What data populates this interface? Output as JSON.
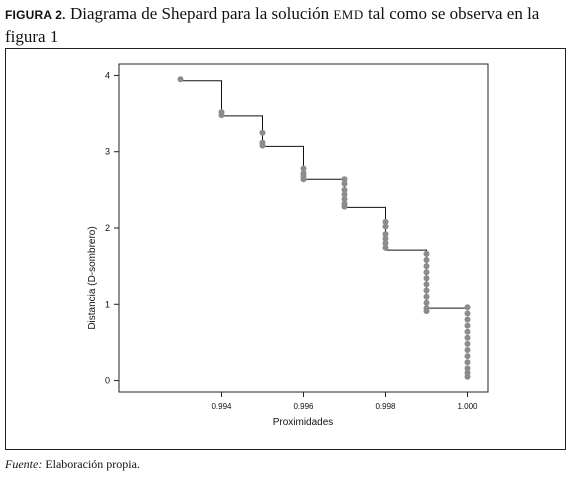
{
  "caption": {
    "figure_label": "FIGURA 2.",
    "text_before": "Diagrama de Shepard para la solución",
    "acronym": "EMD",
    "text_after": "tal como se observa en la figura 1"
  },
  "source": {
    "label": "Fuente:",
    "text": "Elaboración propia."
  },
  "chart_data": {
    "type": "scatter",
    "title": "",
    "xlabel": "Proximidades",
    "ylabel": "Distancia (D-sombrero)",
    "xlim": [
      0.9915,
      1.0005
    ],
    "ylim": [
      -0.15,
      4.15
    ],
    "xticks": [
      0.994,
      0.996,
      0.998,
      1.0
    ],
    "xtick_labels": [
      "0.994",
      "0.996",
      "0.998",
      "1.000"
    ],
    "yticks": [
      0,
      1,
      2,
      3,
      4
    ],
    "ytick_labels": [
      "0",
      "1",
      "2",
      "3",
      "4"
    ],
    "grid": false,
    "legend": "none",
    "point_color": "#8c8c8c",
    "line_color": "#111111",
    "points": [
      [
        0.993,
        3.95
      ],
      [
        0.994,
        3.52
      ],
      [
        0.994,
        3.48
      ],
      [
        0.995,
        3.25
      ],
      [
        0.995,
        3.12
      ],
      [
        0.995,
        3.08
      ],
      [
        0.996,
        2.78
      ],
      [
        0.996,
        2.72
      ],
      [
        0.996,
        2.68
      ],
      [
        0.996,
        2.64
      ],
      [
        0.997,
        2.64
      ],
      [
        0.997,
        2.58
      ],
      [
        0.997,
        2.5
      ],
      [
        0.997,
        2.44
      ],
      [
        0.997,
        2.38
      ],
      [
        0.997,
        2.32
      ],
      [
        0.997,
        2.28
      ],
      [
        0.998,
        2.08
      ],
      [
        0.998,
        2.02
      ],
      [
        0.998,
        1.92
      ],
      [
        0.998,
        1.86
      ],
      [
        0.998,
        1.8
      ],
      [
        0.998,
        1.74
      ],
      [
        0.999,
        1.66
      ],
      [
        0.999,
        1.58
      ],
      [
        0.999,
        1.5
      ],
      [
        0.999,
        1.42
      ],
      [
        0.999,
        1.34
      ],
      [
        0.999,
        1.26
      ],
      [
        0.999,
        1.18
      ],
      [
        0.999,
        1.1
      ],
      [
        0.999,
        1.02
      ],
      [
        0.999,
        0.95
      ],
      [
        0.999,
        0.91
      ],
      [
        1.0,
        0.96
      ],
      [
        1.0,
        0.88
      ],
      [
        1.0,
        0.8
      ],
      [
        1.0,
        0.72
      ],
      [
        1.0,
        0.64
      ],
      [
        1.0,
        0.56
      ],
      [
        1.0,
        0.48
      ],
      [
        1.0,
        0.4
      ],
      [
        1.0,
        0.32
      ],
      [
        1.0,
        0.24
      ],
      [
        1.0,
        0.16
      ],
      [
        1.0,
        0.1
      ],
      [
        1.0,
        0.05
      ]
    ],
    "step_line": [
      [
        0.993,
        3.93
      ],
      [
        0.994,
        3.93
      ],
      [
        0.994,
        3.47
      ],
      [
        0.995,
        3.47
      ],
      [
        0.995,
        3.07
      ],
      [
        0.996,
        3.07
      ],
      [
        0.996,
        2.64
      ],
      [
        0.997,
        2.64
      ],
      [
        0.997,
        2.27
      ],
      [
        0.998,
        2.27
      ],
      [
        0.998,
        1.71
      ],
      [
        0.999,
        1.71
      ],
      [
        0.999,
        0.95
      ],
      [
        1.0,
        0.95
      ]
    ]
  }
}
